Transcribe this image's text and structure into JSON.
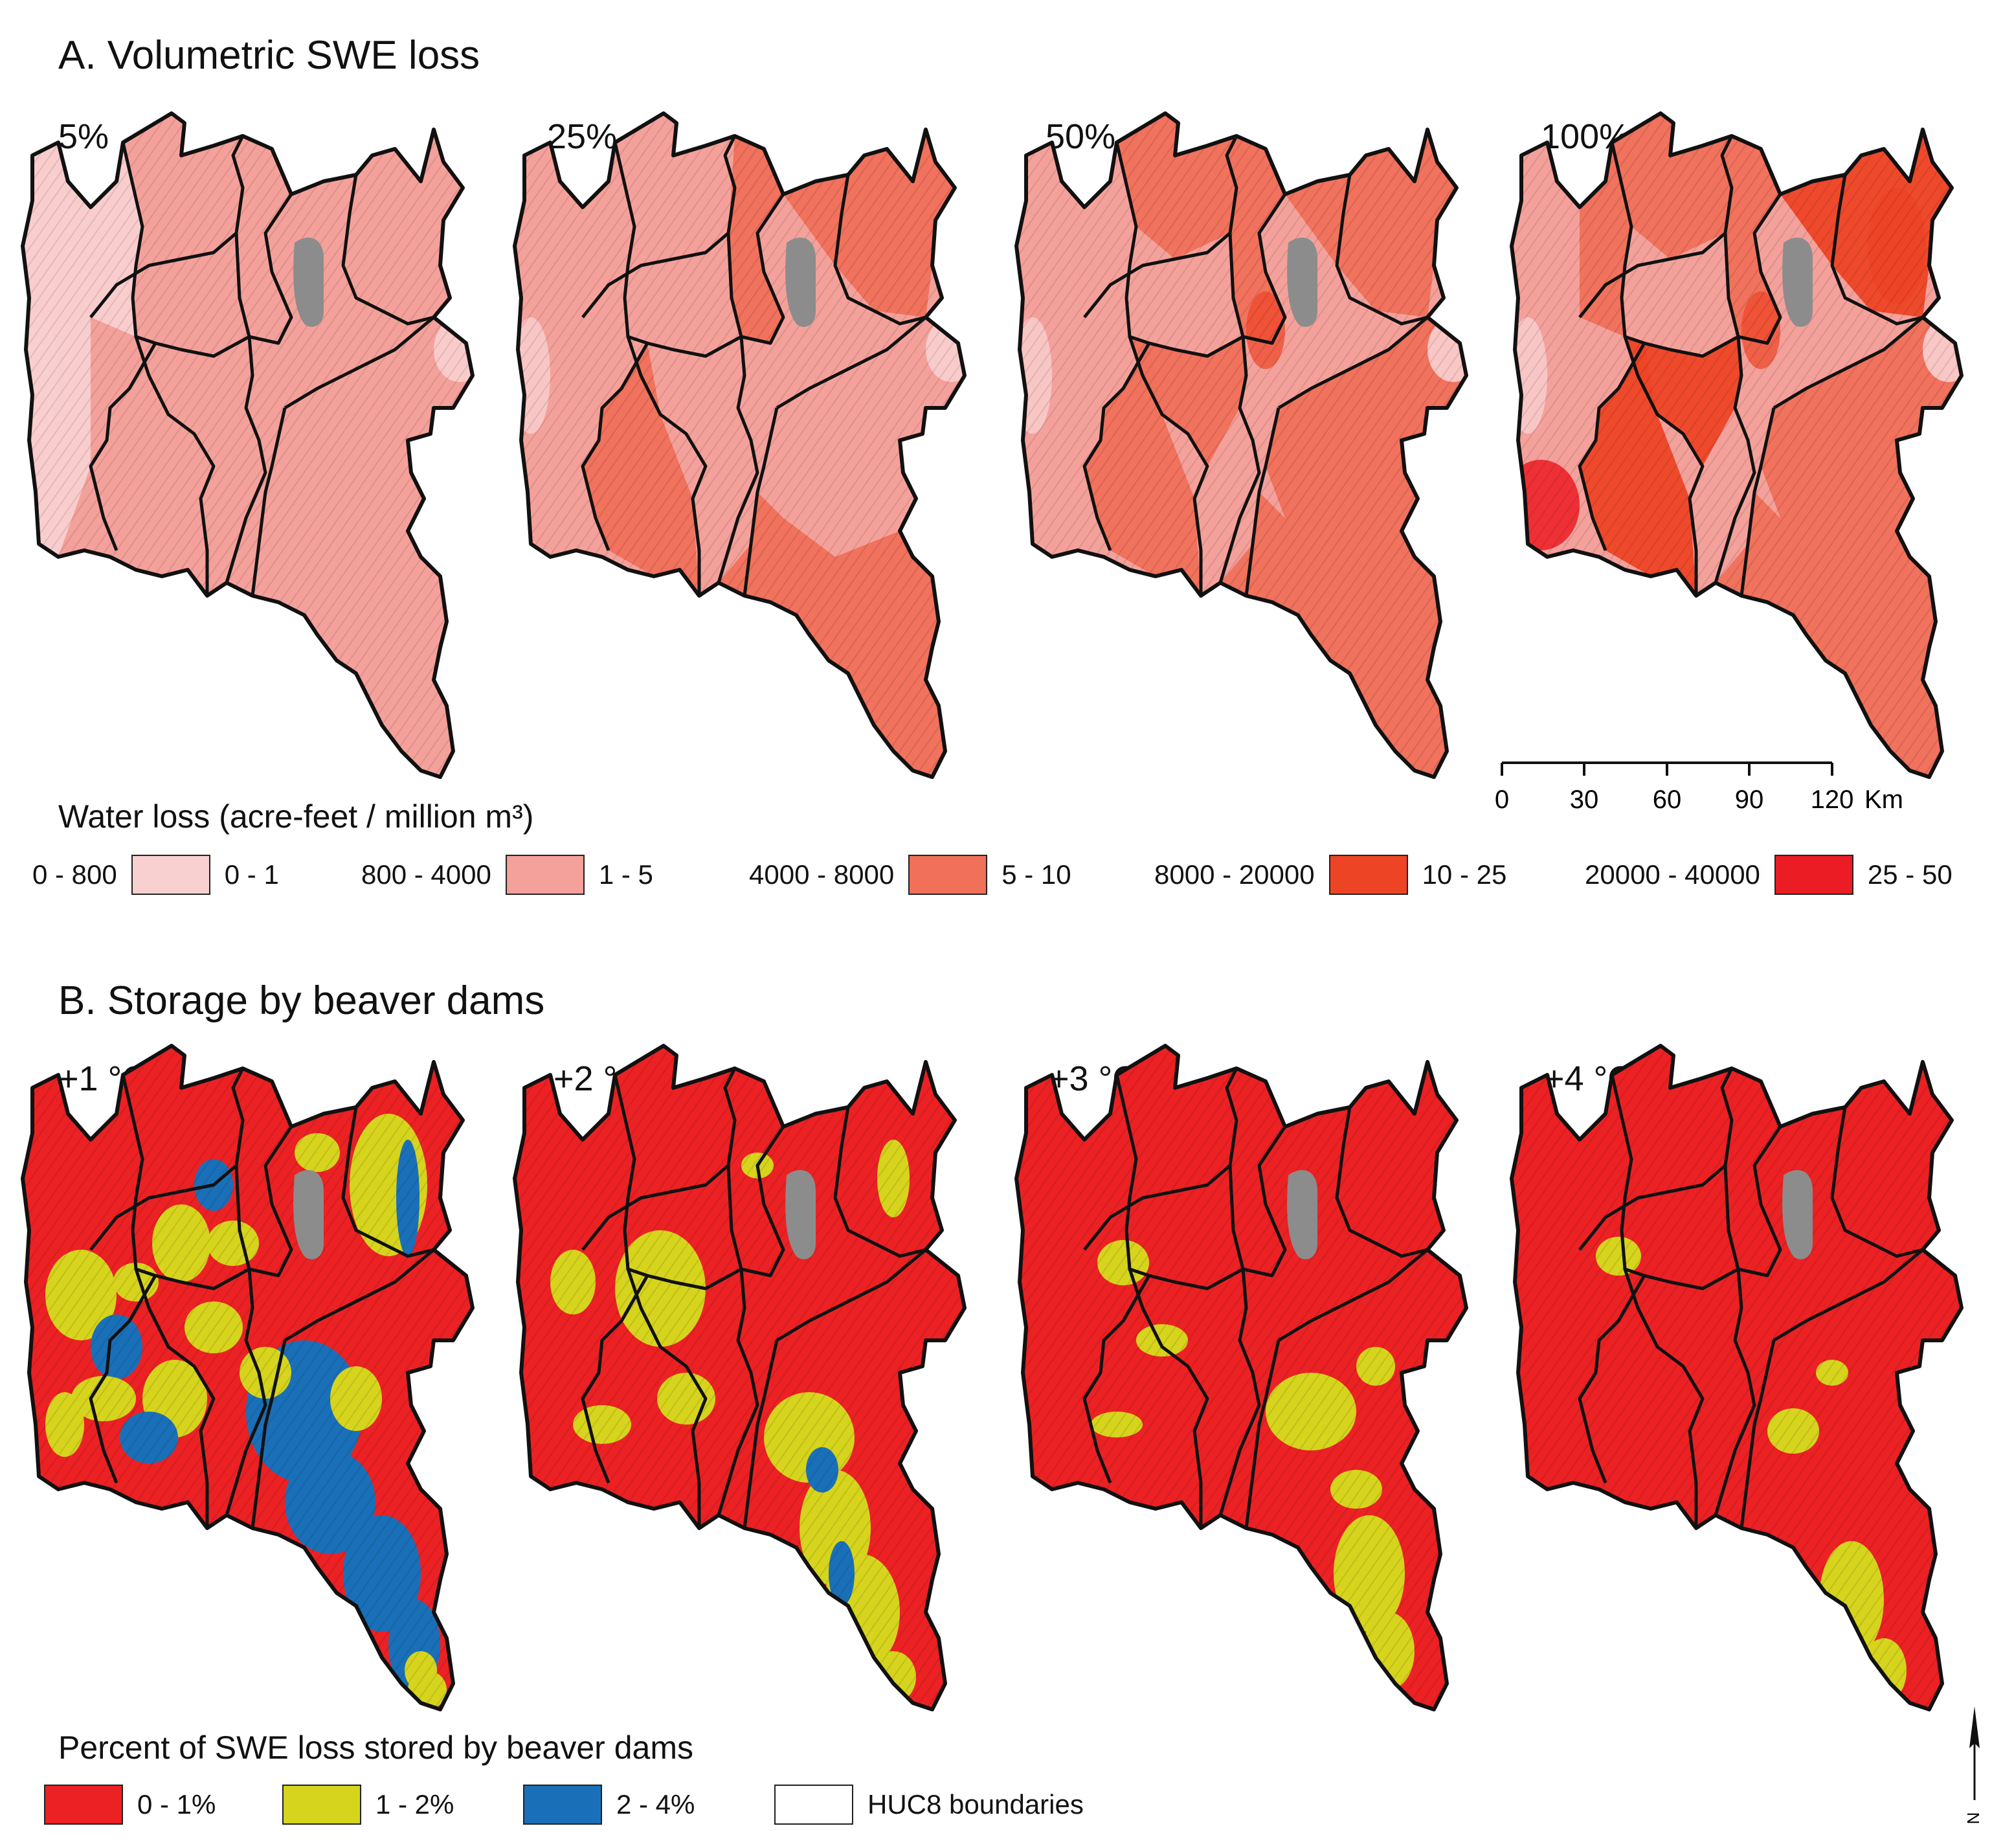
{
  "panel_a": {
    "title": "A. Volumetric SWE loss",
    "scenarios": [
      "5%",
      "25%",
      "50%",
      "100%"
    ],
    "legend_title": "Water loss (acre-feet / million m³)",
    "legend": [
      {
        "left": "0 - 800",
        "right": "0 - 1",
        "color": "#f9d0d0"
      },
      {
        "left": "800 - 4000",
        "right": "1 - 5",
        "color": "#f4a19b"
      },
      {
        "left": "4000 - 8000",
        "right": "5 - 10",
        "color": "#f0705a"
      },
      {
        "left": "8000 - 20000",
        "right": "10 - 25",
        "color": "#ee4426"
      },
      {
        "left": "20000 - 40000",
        "right": "25 - 50",
        "color": "#ec1c24"
      }
    ],
    "scale_bar": {
      "ticks": [
        "0",
        "30",
        "60",
        "90",
        "120"
      ],
      "unit": "Km"
    }
  },
  "panel_b": {
    "title": "B. Storage by beaver dams",
    "scenarios": [
      "+1 °C",
      "+2 °C",
      "+3 °C",
      "+4 °C"
    ],
    "legend_title": "Percent of SWE loss stored by beaver dams",
    "legend": [
      {
        "label": "0 - 1%",
        "color": "#ec2124"
      },
      {
        "label": "1 - 2%",
        "color": "#d6d41d"
      },
      {
        "label": "2 - 4%",
        "color": "#1a70b8"
      },
      {
        "label": "HUC8 boundaries",
        "color": "#ffffff"
      }
    ]
  },
  "north_arrow": {
    "label": "N"
  },
  "colors": {
    "lake": "#8c8c8c",
    "boundary": "#111111"
  }
}
